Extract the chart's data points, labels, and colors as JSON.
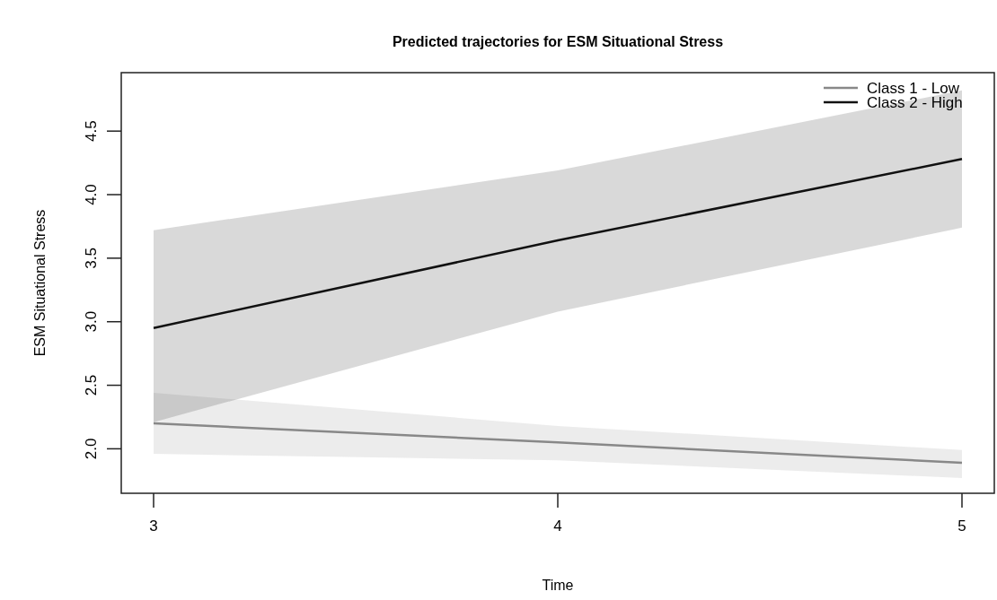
{
  "chart_data": {
    "type": "line",
    "title": "Predicted trajectories for ESM Situational Stress",
    "xlabel": "Time",
    "ylabel": "ESM Situational Stress",
    "x": [
      3,
      4,
      5
    ],
    "xlim": [
      2.92,
      5.08
    ],
    "xticks": [
      3,
      4,
      5
    ],
    "ylim": [
      1.65,
      4.96
    ],
    "yticks": [
      {
        "value": 2,
        "label": "2.0"
      },
      {
        "value": 2.5,
        "label": "2.5"
      },
      {
        "value": 3,
        "label": "3.0"
      },
      {
        "value": 3.5,
        "label": "3.5"
      },
      {
        "value": 4,
        "label": "4.0"
      },
      {
        "value": 4.5,
        "label": "4.5"
      }
    ],
    "series": [
      {
        "name": "Class 1 - Low",
        "color": "#888888",
        "values": [
          2.2,
          2.05,
          1.89
        ],
        "lower": [
          1.96,
          1.91,
          1.77
        ],
        "upper": [
          2.44,
          2.18,
          1.99
        ]
      },
      {
        "name": "Class 2 - High",
        "color": "#111111",
        "values": [
          2.95,
          3.64,
          4.28
        ],
        "lower": [
          2.21,
          3.08,
          3.74
        ],
        "upper": [
          3.72,
          4.19,
          4.82
        ]
      }
    ],
    "legend": "top right",
    "grid": false,
    "marker": "none",
    "line_style": "solid"
  }
}
